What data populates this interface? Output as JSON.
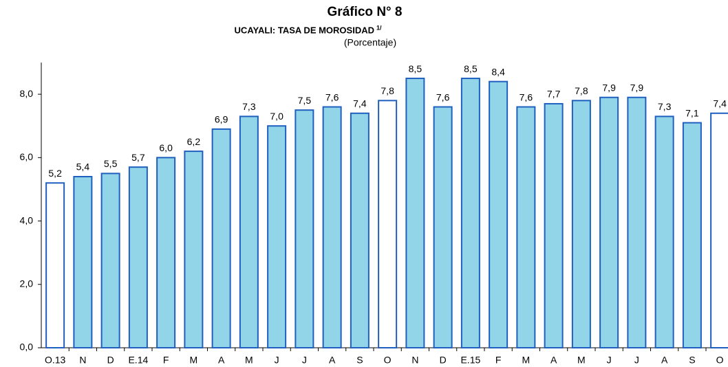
{
  "chart_data": {
    "type": "bar",
    "title": "Gráfico N° 8",
    "subtitle": "UCAYALI: TASA DE MOROSIDAD",
    "subtitle_note": "1/",
    "unit_label": "(Porcentaje)",
    "categories": [
      "O.13",
      "N",
      "D",
      "E.14",
      "F",
      "M",
      "A",
      "M",
      "J",
      "J",
      "A",
      "S",
      "O",
      "N",
      "D",
      "E.15",
      "F",
      "M",
      "A",
      "M",
      "J",
      "J",
      "A",
      "S",
      "O"
    ],
    "values": [
      5.2,
      5.4,
      5.5,
      5.7,
      6.0,
      6.2,
      6.9,
      7.3,
      7.0,
      7.5,
      7.6,
      7.4,
      7.8,
      8.5,
      7.6,
      8.5,
      8.4,
      7.6,
      7.7,
      7.8,
      7.9,
      7.9,
      7.3,
      7.1,
      7.4
    ],
    "value_labels": [
      "5,2",
      "5,4",
      "5,5",
      "5,7",
      "6,0",
      "6,2",
      "6,9",
      "7,3",
      "7,0",
      "7,5",
      "7,6",
      "7,4",
      "7,8",
      "8,5",
      "7,6",
      "8,5",
      "8,4",
      "7,6",
      "7,7",
      "7,8",
      "7,9",
      "7,9",
      "7,3",
      "7,1",
      "7,4"
    ],
    "colors": [
      "#ffffff",
      "#92d5e8",
      "#92d5e8",
      "#92d5e8",
      "#92d5e8",
      "#92d5e8",
      "#92d5e8",
      "#92d5e8",
      "#92d5e8",
      "#92d5e8",
      "#92d5e8",
      "#92d5e8",
      "#ffffff",
      "#92d5e8",
      "#92d5e8",
      "#92d5e8",
      "#92d5e8",
      "#92d5e8",
      "#92d5e8",
      "#92d5e8",
      "#92d5e8",
      "#92d5e8",
      "#92d5e8",
      "#92d5e8",
      "#ffffff"
    ],
    "edge_color": "#1f5fbf",
    "ylim": [
      0,
      9
    ],
    "yticks": [
      {
        "value": 0,
        "label": "0,0"
      },
      {
        "value": 2,
        "label": "2,0"
      },
      {
        "value": 4,
        "label": "4,0"
      },
      {
        "value": 6,
        "label": "6,0"
      },
      {
        "value": 8,
        "label": "8,0"
      }
    ],
    "grid": false
  }
}
